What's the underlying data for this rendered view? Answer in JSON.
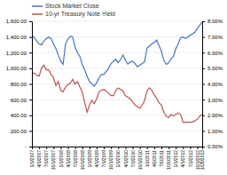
{
  "chart_data": {
    "type": "line",
    "categories": [
      "1/1/2007",
      null,
      null,
      "4/1/2007",
      null,
      null,
      "7/1/2007",
      null,
      null,
      "10/1/2007",
      null,
      null,
      "1/1/2008",
      null,
      null,
      "4/1/2008",
      null,
      null,
      "7/1/2008",
      null,
      null,
      "10/1/2008",
      null,
      null,
      "1/1/2009",
      null,
      null,
      "4/1/2009",
      null,
      null,
      "7/1/2009",
      null,
      null,
      "10/1/2009",
      null,
      null,
      "1/1/2010",
      null,
      null,
      "4/1/2010",
      null,
      null,
      "7/1/2010",
      null,
      null,
      "10/1/2010",
      null,
      null,
      "1/1/2011",
      null,
      null,
      "4/1/2011",
      null,
      null,
      "7/1/2011",
      null,
      null,
      "10/1/2011",
      null,
      null,
      "1/1/2012",
      null,
      null,
      "4/1/2012",
      null,
      null,
      "7/1/2012",
      null,
      null,
      "10/1/2012",
      null,
      "1/28/2013"
    ],
    "series": [
      {
        "name": "Stock Market Close",
        "color": "#4472C4",
        "values": [
          1420,
          1390,
          1350,
          1310,
          1300,
          1350,
          1380,
          1400,
          1380,
          1310,
          1250,
          1170,
          1090,
          1050,
          1310,
          1370,
          1410,
          1400,
          1270,
          1200,
          1150,
          1050,
          980,
          900,
          830,
          800,
          770,
          815,
          880,
          920,
          920,
          960,
          1000,
          1060,
          1090,
          1115,
          1070,
          1115,
          1168,
          1100,
          1055,
          1080,
          1090,
          1060,
          1020,
          1040,
          1060,
          1085,
          1260,
          1285,
          1310,
          1330,
          1360,
          1290,
          1220,
          1100,
          1050,
          1070,
          1120,
          1150,
          1250,
          1310,
          1390,
          1400,
          1380,
          1400,
          1420,
          1440,
          1460,
          1510,
          1550,
          1590
        ]
      },
      {
        "name": "10-yr Treasury Note Yield",
        "color": "#C0504D",
        "axis": "y2",
        "values": [
          0.0465,
          0.047,
          0.0455,
          0.045,
          0.05,
          0.052,
          0.049,
          0.049,
          0.046,
          0.044,
          0.039,
          0.0415,
          0.036,
          0.035,
          0.038,
          0.0395,
          0.0405,
          0.043,
          0.04,
          0.0415,
          0.038,
          0.035,
          0.028,
          0.022,
          0.0265,
          0.0295,
          0.0275,
          0.0305,
          0.035,
          0.036,
          0.0365,
          0.0355,
          0.034,
          0.0325,
          0.0325,
          0.036,
          0.0375,
          0.0365,
          0.0355,
          0.0325,
          0.0315,
          0.0305,
          0.0285,
          0.0265,
          0.0255,
          0.0245,
          0.0265,
          0.0295,
          0.0355,
          0.0375,
          0.036,
          0.033,
          0.031,
          0.028,
          0.0265,
          0.022,
          0.0195,
          0.0185,
          0.0205,
          0.0195,
          0.0205,
          0.0215,
          0.0205,
          0.0155,
          0.0155,
          0.0155,
          0.0155,
          0.0158,
          0.0165,
          0.0175,
          0.0195,
          0.0205
        ]
      }
    ],
    "ylim": [
      0,
      1600
    ],
    "yticks": [
      {
        "value": 0,
        "label": "-"
      },
      {
        "value": 200,
        "label": "200.00"
      },
      {
        "value": 400,
        "label": "400.00"
      },
      {
        "value": 600,
        "label": "600.00"
      },
      {
        "value": 800,
        "label": "800.00"
      },
      {
        "value": 1000,
        "label": "1,000.00"
      },
      {
        "value": 1200,
        "label": "1,200.00"
      },
      {
        "value": 1400,
        "label": "1,400.00"
      },
      {
        "value": 1600,
        "label": "1,600.00"
      }
    ],
    "y2lim": [
      0.0,
      0.08
    ],
    "y2ticks": [
      {
        "value": 0.0,
        "label": "0.00%"
      },
      {
        "value": 0.01,
        "label": "1.00%"
      },
      {
        "value": 0.02,
        "label": "2.00%"
      },
      {
        "value": 0.03,
        "label": "3.00%"
      },
      {
        "value": 0.04,
        "label": "4.00%"
      },
      {
        "value": 0.05,
        "label": "5.00%"
      },
      {
        "value": 0.06,
        "label": "6.00%"
      },
      {
        "value": 0.07,
        "label": "7.00%"
      },
      {
        "value": 0.08,
        "label": "8.00%"
      }
    ],
    "grid": true,
    "legend": "top"
  }
}
